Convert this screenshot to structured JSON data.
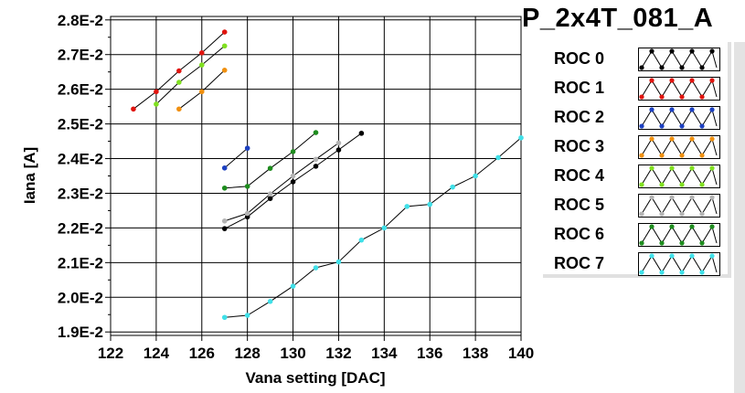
{
  "plot_title": "P_2x4T_081_A",
  "chart_data": {
    "type": "line",
    "title": "",
    "xlabel": "Vana setting [DAC]",
    "ylabel": "Iana [A]",
    "xlim": [
      122,
      140
    ],
    "ylim": [
      0.0189,
      0.0281
    ],
    "x_ticks": [
      122,
      124,
      126,
      128,
      130,
      132,
      134,
      136,
      138,
      140
    ],
    "y_ticks": [
      0.019,
      0.02,
      0.021,
      0.022,
      0.023,
      0.024,
      0.025,
      0.026,
      0.027,
      0.028
    ],
    "x_tick_labels": [
      "122",
      "124",
      "126",
      "128",
      "130",
      "132",
      "134",
      "136",
      "138",
      "140"
    ],
    "y_tick_labels": [
      "1.9E-2",
      "2.0E-2",
      "2.1E-2",
      "2.2E-2",
      "2.3E-2",
      "2.4E-2",
      "2.5E-2",
      "2.6E-2",
      "2.7E-2",
      "2.8E-2"
    ],
    "grid": true,
    "legend_position": "right",
    "series": [
      {
        "name": "ROC 0",
        "color": "#000000",
        "x": [
          127,
          128,
          129,
          130,
          131,
          132,
          133
        ],
        "y": [
          0.02198,
          0.02232,
          0.02285,
          0.02333,
          0.02378,
          0.02425,
          0.02473
        ]
      },
      {
        "name": "ROC 1",
        "color": "#e0140e",
        "x": [
          123,
          124,
          125,
          126,
          127
        ],
        "y": [
          0.02543,
          0.02593,
          0.02653,
          0.02705,
          0.02765
        ]
      },
      {
        "name": "ROC 2",
        "color": "#1c40c0",
        "x": [
          127,
          128
        ],
        "y": [
          0.02373,
          0.0243
        ]
      },
      {
        "name": "ROC 3",
        "color": "#f09010",
        "x": [
          125,
          126,
          127
        ],
        "y": [
          0.02543,
          0.02593,
          0.02655
        ]
      },
      {
        "name": "ROC 4",
        "color": "#80e020",
        "x": [
          124,
          125,
          126,
          127
        ],
        "y": [
          0.02557,
          0.0262,
          0.0267,
          0.02725
        ]
      },
      {
        "name": "ROC 5",
        "color": "#b4b4b4",
        "x": [
          127,
          128,
          129,
          130,
          131,
          132
        ],
        "y": [
          0.0222,
          0.02242,
          0.02298,
          0.0235,
          0.02398,
          0.02445
        ]
      },
      {
        "name": "ROC 6",
        "color": "#1e8c1e",
        "x": [
          127,
          128,
          129,
          130,
          131
        ],
        "y": [
          0.02315,
          0.0232,
          0.02372,
          0.0242,
          0.02475
        ]
      },
      {
        "name": "ROC 7",
        "color": "#40e0e8",
        "x": [
          127,
          128,
          129,
          130,
          131,
          132,
          133,
          134,
          135,
          136,
          137,
          138,
          139,
          140
        ],
        "y": [
          0.01942,
          0.01948,
          0.01988,
          0.02032,
          0.02085,
          0.02102,
          0.02165,
          0.022,
          0.02262,
          0.02268,
          0.02318,
          0.0235,
          0.02403,
          0.0246
        ]
      }
    ]
  }
}
